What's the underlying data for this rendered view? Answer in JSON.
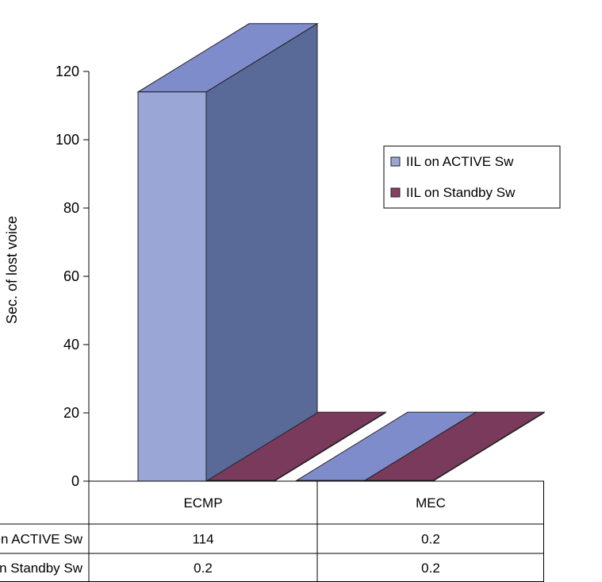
{
  "chart_data": {
    "type": "bar",
    "categories": [
      "ECMP",
      "MEC"
    ],
    "series": [
      {
        "name": "IIL on ACTIVE Sw",
        "values": [
          114,
          0.2
        ],
        "value_labels": [
          "114",
          "0.2"
        ],
        "color": "#9aa6d6"
      },
      {
        "name": "IIL on Standby Sw",
        "values": [
          0.2,
          0.2
        ],
        "value_labels": [
          "0.2",
          "0.2"
        ],
        "color": "#8a3e63"
      }
    ],
    "ylabel": "Sec. of lost voice",
    "xlabel": "",
    "title": "",
    "ylim": [
      0,
      120
    ],
    "yticks": [
      "0",
      "20",
      "40",
      "60",
      "80",
      "100",
      "120"
    ],
    "legend_position": "right",
    "data_table": true,
    "grid": false
  }
}
